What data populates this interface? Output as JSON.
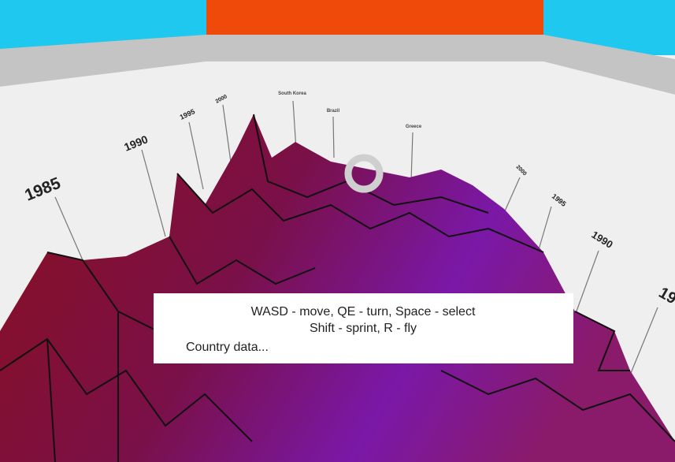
{
  "axis_labels": {
    "left_years": [
      "1985",
      "1990",
      "1995",
      "2000"
    ],
    "right_years": [
      "2000",
      "1995",
      "1990",
      "19"
    ],
    "countries": [
      "South Korea",
      "Brazil",
      "Greece"
    ]
  },
  "hud": {
    "controls": [
      "WASD - move, QE - turn, Space - select",
      "Shift - sprint, R - fly"
    ],
    "info": "Country data..."
  }
}
